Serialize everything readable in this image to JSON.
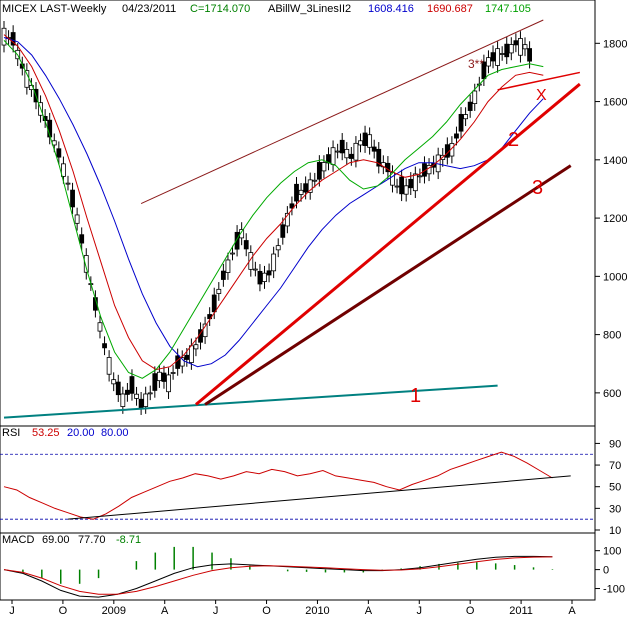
{
  "header": {
    "symbol": "MICEX LAST-Weekly",
    "date": "04/23/2011",
    "close": "C=1714.070",
    "indicator": "ABillW_3LinesII2",
    "value1": "1608.416",
    "value2": "1690.687",
    "value3": "1747.105"
  },
  "colors": {
    "price": "#000000",
    "ma_blue": "#0000cc",
    "ma_red": "#cc0000",
    "ma_green": "#00aa00",
    "trend_red": "#e00000",
    "trend_maroon": "#700000",
    "trend_teal": "#008080",
    "channel": "#8b1a1a",
    "rsi_line": "#cc0000",
    "rsi_guides": "#0000aa",
    "macd_signal": "#cc0000",
    "macd_hist": "#008000"
  },
  "chart_data": [
    {
      "type": "candlestick",
      "panel": "price",
      "ylim": [
        500,
        1880
      ],
      "yticks": [
        "1800",
        "1600",
        "1400",
        "1200",
        "1000",
        "800",
        "600"
      ],
      "series": [
        {
          "values_x_y": [
            [
              0,
              1830
            ],
            [
              2,
              1810
            ],
            [
              4,
              1720
            ],
            [
              6,
              1650
            ],
            [
              8,
              1580
            ],
            [
              10,
              1500
            ],
            [
              12,
              1420
            ],
            [
              14,
              1320
            ],
            [
              16,
              1200
            ],
            [
              18,
              1050
            ],
            [
              20,
              900
            ],
            [
              22,
              760
            ],
            [
              24,
              640
            ],
            [
              26,
              580
            ],
            [
              28,
              620
            ],
            [
              30,
              560
            ],
            [
              32,
              600
            ],
            [
              34,
              660
            ],
            [
              36,
              640
            ],
            [
              38,
              700
            ],
            [
              40,
              720
            ],
            [
              42,
              760
            ],
            [
              44,
              820
            ],
            [
              46,
              900
            ],
            [
              48,
              1000
            ],
            [
              50,
              1080
            ],
            [
              52,
              1150
            ],
            [
              54,
              1060
            ],
            [
              56,
              990
            ],
            [
              58,
              1010
            ],
            [
              60,
              1100
            ],
            [
              62,
              1200
            ],
            [
              64,
              1280
            ],
            [
              66,
              1300
            ],
            [
              68,
              1330
            ],
            [
              70,
              1380
            ],
            [
              72,
              1420
            ],
            [
              74,
              1440
            ],
            [
              76,
              1410
            ],
            [
              78,
              1460
            ],
            [
              80,
              1470
            ],
            [
              82,
              1400
            ],
            [
              84,
              1370
            ],
            [
              86,
              1310
            ],
            [
              88,
              1300
            ],
            [
              90,
              1330
            ],
            [
              92,
              1360
            ],
            [
              94,
              1380
            ],
            [
              96,
              1410
            ],
            [
              98,
              1440
            ],
            [
              100,
              1520
            ],
            [
              102,
              1580
            ],
            [
              104,
              1660
            ],
            [
              106,
              1740
            ],
            [
              108,
              1760
            ],
            [
              110,
              1770
            ],
            [
              112,
              1800
            ],
            [
              114,
              1790
            ],
            [
              116,
              1720
            ]
          ]
        }
      ],
      "moving_averages": [
        {
          "values": [
            1820,
            1805,
            1760,
            1690,
            1610,
            1520,
            1420,
            1310,
            1190,
            1060,
            940,
            840,
            760,
            710,
            690,
            700,
            730,
            780,
            840,
            900,
            960,
            1030,
            1100,
            1160,
            1210,
            1250,
            1280,
            1310,
            1340,
            1370,
            1390,
            1390,
            1380,
            1370,
            1380,
            1400,
            1440,
            1500,
            1560,
            1610
          ]
        },
        {
          "values": [
            1830,
            1790,
            1720,
            1620,
            1500,
            1360,
            1200,
            1050,
            900,
            790,
            710,
            680,
            690,
            730,
            790,
            860,
            930,
            1000,
            1070,
            1130,
            1180,
            1240,
            1290,
            1330,
            1360,
            1390,
            1400,
            1390,
            1360,
            1340,
            1350,
            1380,
            1420,
            1470,
            1530,
            1600,
            1650,
            1690,
            1700,
            1690
          ]
        },
        {
          "values": [
            1810,
            1760,
            1660,
            1530,
            1380,
            1200,
            1020,
            860,
            740,
            670,
            650,
            680,
            740,
            820,
            900,
            980,
            1060,
            1140,
            1210,
            1270,
            1320,
            1360,
            1390,
            1400,
            1380,
            1330,
            1300,
            1310,
            1350,
            1400,
            1440,
            1480,
            1530,
            1590,
            1640,
            1690,
            1710,
            1720,
            1730,
            1720
          ]
        }
      ],
      "trendlines": [
        {
          "label": "1",
          "from": [
            0,
            515
          ],
          "to": [
            108,
            625
          ]
        },
        {
          "label": "2",
          "from": [
            42,
            560
          ],
          "to": [
            126,
            1660
          ]
        },
        {
          "label": "3",
          "from": [
            44,
            560
          ],
          "to": [
            124,
            1380
          ]
        },
        {
          "label": "X",
          "from": [
            108,
            1640
          ],
          "to": [
            126,
            1700
          ]
        },
        {
          "label": "3**",
          "from": [
            30,
            1250
          ],
          "to": [
            118,
            1880
          ]
        }
      ]
    },
    {
      "type": "line",
      "panel": "RSI",
      "title": "RSI",
      "values_text": [
        "53.25",
        "20.00",
        "80.00"
      ],
      "ylim": [
        10,
        95
      ],
      "yticks": [
        "90",
        "70",
        "50",
        "30",
        "10"
      ],
      "series": [
        {
          "values": [
            50,
            47,
            40,
            35,
            30,
            26,
            22,
            20,
            25,
            32,
            40,
            45,
            50,
            55,
            58,
            62,
            60,
            57,
            60,
            64,
            62,
            66,
            64,
            60,
            62,
            65,
            60,
            58,
            56,
            54,
            50,
            47,
            52,
            56,
            60,
            66,
            70,
            74,
            78,
            82,
            78,
            72,
            65,
            58
          ]
        }
      ]
    },
    {
      "type": "bar",
      "panel": "MACD",
      "title": "MACD",
      "values_text": [
        "69.00",
        "77.70",
        "-8.71"
      ],
      "ylim": [
        -150,
        130
      ],
      "yticks": [
        "100",
        "0",
        "-100"
      ],
      "series": [
        {
          "values": [
            0,
            -20,
            -60,
            -110,
            -140,
            -145,
            -130,
            -100,
            -60,
            -20,
            10,
            25,
            30,
            25,
            20,
            15,
            10,
            5,
            0,
            -5,
            -5,
            0,
            10,
            25,
            40,
            55,
            65,
            70,
            70,
            68
          ]
        },
        {
          "values": [
            0,
            -15,
            -45,
            -85,
            -115,
            -130,
            -130,
            -115,
            -90,
            -60,
            -30,
            -5,
            10,
            18,
            20,
            18,
            14,
            10,
            5,
            0,
            -3,
            -2,
            4,
            15,
            28,
            42,
            54,
            62,
            66,
            67
          ]
        }
      ]
    }
  ],
  "xaxis": {
    "labels": [
      "J",
      "O",
      "2009",
      "A",
      "J",
      "O",
      "2010",
      "A",
      "J",
      "O",
      "2011",
      "A"
    ]
  },
  "annotations": {
    "label_1": "1",
    "label_2": "2",
    "label_3": "3",
    "label_x": "X",
    "label_3s": "3**"
  }
}
